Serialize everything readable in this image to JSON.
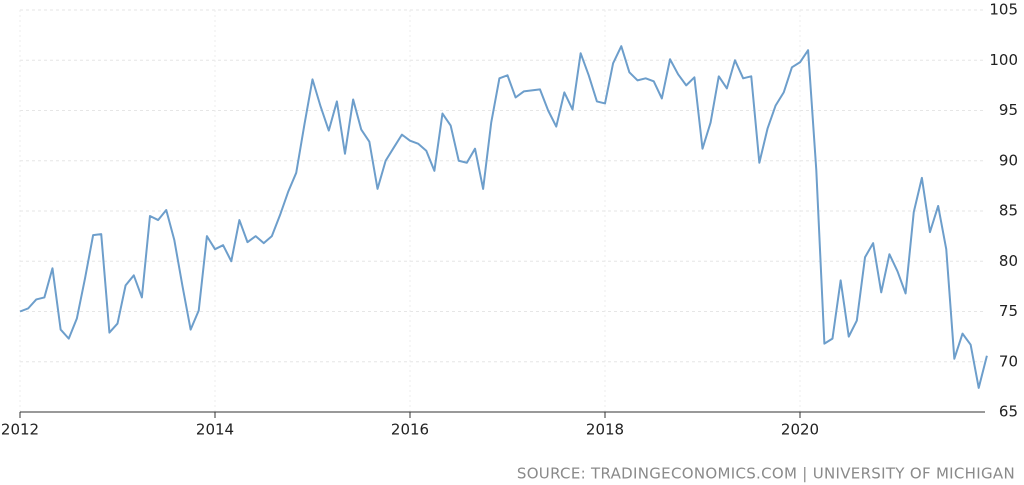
{
  "chart_data": {
    "type": "line",
    "source": "SOURCE: TRADINGECONOMICS.COM | UNIVERSITY OF MICHIGAN",
    "x": [
      2012,
      2012.083,
      2012.167,
      2012.25,
      2012.333,
      2012.417,
      2012.5,
      2012.583,
      2012.667,
      2012.75,
      2012.833,
      2012.917,
      2013,
      2013.083,
      2013.167,
      2013.25,
      2013.333,
      2013.417,
      2013.5,
      2013.583,
      2013.667,
      2013.75,
      2013.833,
      2013.917,
      2014,
      2014.083,
      2014.167,
      2014.25,
      2014.333,
      2014.417,
      2014.5,
      2014.583,
      2014.667,
      2014.75,
      2014.833,
      2014.917,
      2015,
      2015.083,
      2015.167,
      2015.25,
      2015.333,
      2015.417,
      2015.5,
      2015.583,
      2015.667,
      2015.75,
      2015.833,
      2015.917,
      2016,
      2016.083,
      2016.167,
      2016.25,
      2016.333,
      2016.417,
      2016.5,
      2016.583,
      2016.667,
      2016.75,
      2016.833,
      2016.917,
      2017,
      2017.083,
      2017.167,
      2017.25,
      2017.333,
      2017.417,
      2017.5,
      2017.583,
      2017.667,
      2017.75,
      2017.833,
      2017.917,
      2018,
      2018.083,
      2018.167,
      2018.25,
      2018.333,
      2018.417,
      2018.5,
      2018.583,
      2018.667,
      2018.75,
      2018.833,
      2018.917,
      2019,
      2019.083,
      2019.167,
      2019.25,
      2019.333,
      2019.417,
      2019.5,
      2019.583,
      2019.667,
      2019.75,
      2019.833,
      2019.917,
      2020,
      2020.083,
      2020.167,
      2020.25,
      2020.333,
      2020.417,
      2020.5,
      2020.583,
      2020.667,
      2020.75,
      2020.833,
      2020.917,
      2021,
      2021.083,
      2021.167,
      2021.25,
      2021.333,
      2021.417,
      2021.5,
      2021.583,
      2021.667,
      2021.75,
      2021.833,
      2021.917
    ],
    "series": [
      {
        "color": "#6d9ecb",
        "values": [
          75.0,
          75.3,
          76.2,
          76.4,
          79.3,
          73.2,
          72.3,
          74.3,
          78.3,
          82.6,
          82.7,
          72.9,
          73.8,
          77.6,
          78.6,
          76.4,
          84.5,
          84.1,
          85.1,
          82.1,
          77.5,
          73.2,
          75.1,
          82.5,
          81.2,
          81.6,
          80.0,
          84.1,
          81.9,
          82.5,
          81.8,
          82.5,
          84.6,
          86.9,
          88.8,
          93.6,
          98.1,
          95.4,
          93.0,
          95.9,
          90.7,
          96.1,
          93.1,
          91.9,
          87.2,
          90.0,
          91.3,
          92.6,
          92.0,
          91.7,
          91.0,
          89.0,
          94.7,
          93.5,
          90.0,
          89.8,
          91.2,
          87.2,
          93.8,
          98.2,
          98.5,
          96.3,
          96.9,
          97.0,
          97.1,
          95.0,
          93.4,
          96.8,
          95.1,
          100.7,
          98.5,
          95.9,
          95.7,
          99.7,
          101.4,
          98.8,
          98.0,
          98.2,
          97.9,
          96.2,
          100.1,
          98.6,
          97.5,
          98.3,
          91.2,
          93.8,
          98.4,
          97.2,
          100.0,
          98.2,
          98.4,
          89.8,
          93.2,
          95.5,
          96.8,
          99.3,
          99.8,
          101.0,
          89.1,
          71.8,
          72.3,
          78.1,
          72.5,
          74.1,
          80.4,
          81.8,
          76.9,
          80.7,
          79.0,
          76.8,
          84.9,
          88.3,
          82.9,
          85.5,
          81.2,
          70.3,
          72.8,
          71.7,
          67.4,
          70.6
        ]
      }
    ],
    "xlim": [
      2012,
      2022
    ],
    "xticks": [
      2012,
      2014,
      2016,
      2018,
      2020
    ],
    "ylim": [
      65,
      105
    ],
    "yticks": [
      65,
      70,
      75,
      80,
      85,
      90,
      95,
      100,
      105
    ],
    "grid": true
  }
}
